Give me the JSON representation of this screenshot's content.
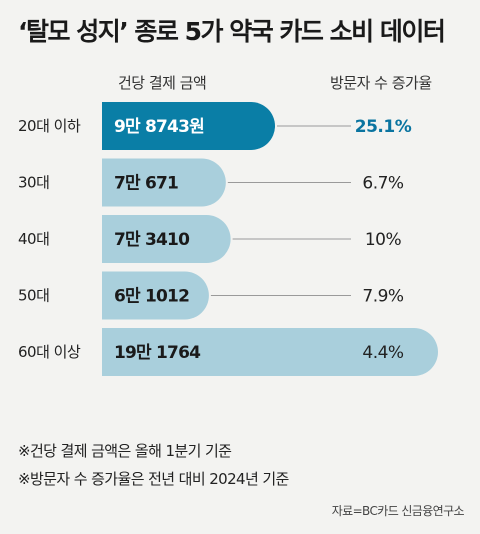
{
  "title": "‘탈모 성지’ 종로 5가 약국 카드 소비 데이터",
  "column_headers": {
    "amount": "건당 결제 금액",
    "visitor_growth": "방문자 수 증가율"
  },
  "colors": {
    "highlight": "#0a7ea6",
    "bar": "#a9cfdc",
    "highlight_text": "#0a74a0",
    "bar_text": "#1a1a1a",
    "connector": "#9a9a9a"
  },
  "chart_data": {
    "type": "bar",
    "orientation": "horizontal",
    "categories": [
      "20대 이하",
      "30대",
      "40대",
      "50대",
      "60대 이상"
    ],
    "series": [
      {
        "name": "건당 결제 금액",
        "values": [
          98743,
          70671,
          73410,
          61012,
          191764
        ],
        "labels": [
          "9만 8743원",
          "7만 671",
          "7만 3410",
          "6만 1012",
          "19만 1764"
        ]
      },
      {
        "name": "방문자 수 증가율",
        "values": [
          25.1,
          6.7,
          10,
          7.9,
          4.4
        ],
        "labels": [
          "25.1%",
          "6.7%",
          "10%",
          "7.9%",
          "4.4%"
        ]
      }
    ],
    "highlight_index": 0
  },
  "notes": [
    "※건당 결제 금액은 올해 1분기 기준",
    "※방문자 수 증가율은 전년 대비 2024년 기준"
  ],
  "source": "자료=BC카드 신금융연구소"
}
